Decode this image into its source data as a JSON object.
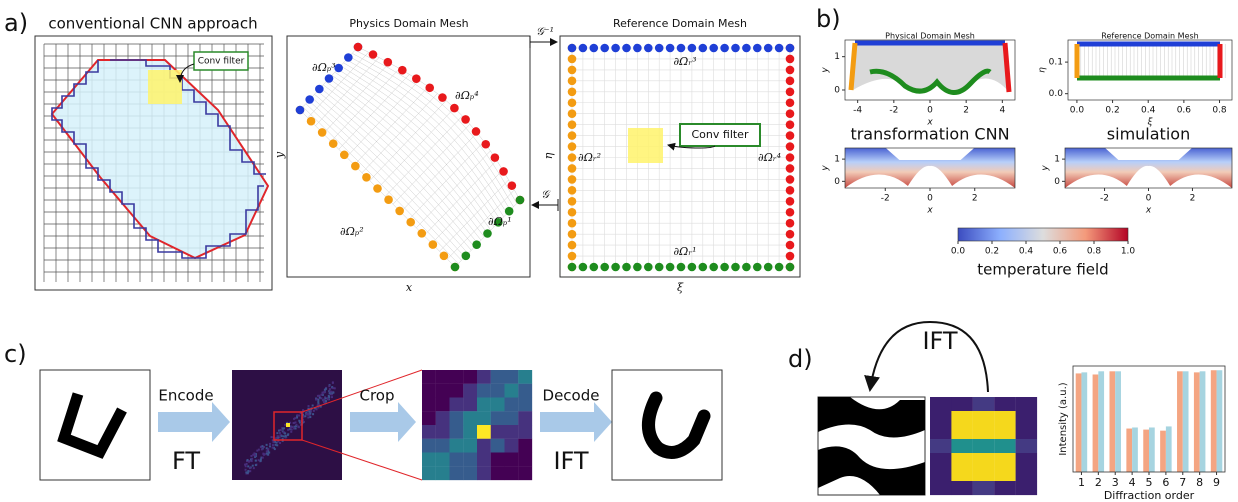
{
  "panel_a": {
    "label": "a)",
    "cnn_title": "conventional CNN approach",
    "cnn_callout": "Conv filter",
    "physics_title": "Physics Domain Mesh",
    "physics_xlabel": "x",
    "physics_ylabel": "y",
    "physics_boundaries": [
      "∂Ωₚ¹",
      "∂Ωₚ²",
      "∂Ωₚ³",
      "∂Ωₚ⁴"
    ],
    "reference_title": "Reference Domain Mesh",
    "reference_xlabel": "ξ",
    "reference_ylabel": "η",
    "reference_boundaries": [
      "∂Ωᵣ¹",
      "∂Ωᵣ²",
      "∂Ωᵣ³",
      "∂Ωᵣ⁴"
    ],
    "reference_callout": "Conv filter",
    "inverse_map": "𝒢⁻¹",
    "forward_map": "𝒢"
  },
  "panel_b": {
    "label": "b)",
    "plots": [
      {
        "title": "Physical Domain Mesh",
        "xlabel": "x",
        "ylabel": "y",
        "xlim": [
          -4.7,
          4.7
        ],
        "xticks": [
          -4,
          -2,
          0,
          2,
          4
        ],
        "ylim": [
          -0.3,
          1.5
        ],
        "yticks": [
          0,
          1
        ]
      },
      {
        "title": "Reference Domain Mesh",
        "xlabel": "ξ",
        "ylabel": "η",
        "xlim": [
          -0.05,
          0.87
        ],
        "xticks": [
          {
            "value": 0,
            "label": "0.0"
          },
          {
            "value": 0.2,
            "label": "0.2"
          },
          {
            "value": 0.4,
            "label": "0.4"
          },
          {
            "value": 0.6,
            "label": "0.6"
          },
          {
            "value": 0.8,
            "label": "0.8"
          }
        ],
        "ylim": [
          -0.02,
          0.17
        ],
        "yticks": [
          {
            "value": 0,
            "label": "0.0"
          },
          {
            "value": 0.1,
            "label": "0.1"
          }
        ]
      },
      {
        "title": "transformation CNN",
        "xlabel": "x",
        "ylabel": "y",
        "xlim": [
          -3.8,
          3.8
        ],
        "xticks": [
          -2,
          0,
          2
        ],
        "ylim": [
          -0.3,
          1.5
        ],
        "yticks": [
          0,
          1
        ]
      },
      {
        "title": "simulation",
        "xlabel": "x",
        "ylabel": "y",
        "xlim": [
          -3.8,
          3.8
        ],
        "xticks": [
          -2,
          0,
          2
        ],
        "ylim": [
          -0.3,
          1.5
        ],
        "yticks": [
          0,
          1
        ]
      }
    ],
    "colorbar": {
      "label": "temperature field",
      "lim": [
        0,
        1
      ],
      "ticks": [
        {
          "value": 0,
          "label": "0.0"
        },
        {
          "value": 0.2,
          "label": "0.2"
        },
        {
          "value": 0.4,
          "label": "0.4"
        },
        {
          "value": 0.6,
          "label": "0.6"
        },
        {
          "value": 0.8,
          "label": "0.8"
        },
        {
          "value": 1,
          "label": "1.0"
        }
      ]
    }
  },
  "panel_c": {
    "label": "c)",
    "steps": [
      {
        "action": "Encode",
        "op": "FT"
      },
      {
        "action": "Crop"
      },
      {
        "action": "Decode",
        "op": "IFT"
      }
    ]
  },
  "panel_d": {
    "label": "d)",
    "arc_label": "IFT",
    "chart_data": {
      "type": "bar",
      "xlabel": "Diffraction order",
      "ylabel": "Intensity (a.u.)",
      "categories": [
        1,
        2,
        3,
        4,
        5,
        6,
        7,
        8,
        9
      ],
      "ylim": [
        0,
        1
      ],
      "series": [
        {
          "color": "#f4a582",
          "values": [
            0.93,
            0.92,
            0.95,
            0.41,
            0.4,
            0.39,
            0.95,
            0.94,
            0.96
          ]
        },
        {
          "color": "#a6d4e0",
          "values": [
            0.94,
            0.95,
            0.95,
            0.42,
            0.42,
            0.43,
            0.95,
            0.95,
            0.96
          ]
        }
      ]
    }
  }
}
